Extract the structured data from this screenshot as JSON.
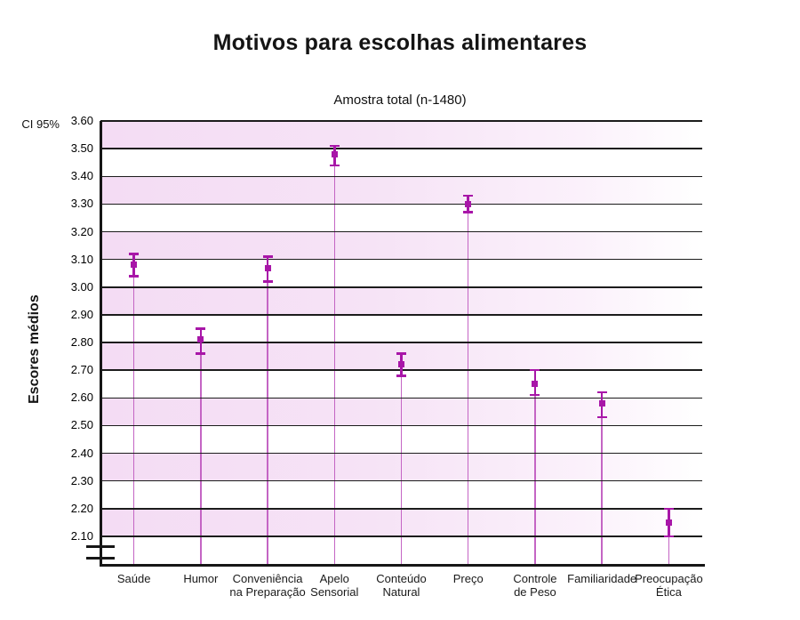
{
  "header": {
    "title": "Motivos para escolhas alimentares",
    "subtitle": "Amostra total (n-1480)",
    "ci_label": "CI 95%",
    "ylabel": "Escores médios"
  },
  "chart_data": {
    "type": "scatter",
    "title": "Motivos para escolhas alimentares",
    "subtitle": "Amostra total (n-1480)",
    "ylabel": "Escores médios",
    "error_bar_type": "CI 95%",
    "ylim": [
      2.1,
      3.6
    ],
    "ytick_step": 0.1,
    "yticks": [
      "3.60",
      "3.50",
      "3.40",
      "3.30",
      "3.20",
      "3.10",
      "3.00",
      "2.90",
      "2.80",
      "2.70",
      "2.60",
      "2.50",
      "2.40",
      "2.30",
      "2.20",
      "2.10"
    ],
    "axis_break_below": 2.1,
    "grid": "horizontal lines at every 0.10, alternating pink/white horizontal bands fading to white on the right",
    "legend": null,
    "categories": [
      "Saúde",
      "Humor",
      "Conveniência na Preparação",
      "Apelo Sensorial",
      "Conteúdo Natural",
      "Preço",
      "Controle de Peso",
      "Familiaridade",
      "Preocupação Ética"
    ],
    "category_label_lines": [
      [
        "Saúde"
      ],
      [
        "Humor"
      ],
      [
        "Conveniência",
        "na Preparação"
      ],
      [
        "Apelo",
        "Sensorial"
      ],
      [
        "Conteúdo",
        "Natural"
      ],
      [
        "Preço"
      ],
      [
        "Controle",
        "de Peso"
      ],
      [
        "Familiaridade"
      ],
      [
        "Preocupação",
        "Ética"
      ]
    ],
    "points": [
      {
        "label": "Saúde",
        "mean": 3.08,
        "ci_low": 3.04,
        "ci_high": 3.12
      },
      {
        "label": "Humor",
        "mean": 2.81,
        "ci_low": 2.76,
        "ci_high": 2.85
      },
      {
        "label": "Conveniência na Preparação",
        "mean": 3.07,
        "ci_low": 3.02,
        "ci_high": 3.11
      },
      {
        "label": "Apelo Sensorial",
        "mean": 3.48,
        "ci_low": 3.44,
        "ci_high": 3.51
      },
      {
        "label": "Conteúdo Natural",
        "mean": 2.72,
        "ci_low": 2.68,
        "ci_high": 2.76
      },
      {
        "label": "Preço",
        "mean": 3.3,
        "ci_low": 3.27,
        "ci_high": 3.33
      },
      {
        "label": "Controle de Peso",
        "mean": 2.65,
        "ci_low": 2.61,
        "ci_high": 2.7
      },
      {
        "label": "Familiaridade",
        "mean": 2.58,
        "ci_low": 2.53,
        "ci_high": 2.62
      },
      {
        "label": "Preocupação Ética",
        "mean": 2.15,
        "ci_low": 2.1,
        "ci_high": 2.2
      }
    ],
    "colors": {
      "marker": "#a816a8",
      "error_bar": "#a816a8",
      "drop_line": "#c465c4",
      "band_pink": "#f4dcf4",
      "gridline": "#1c1c1c",
      "background": "#ffffff"
    }
  }
}
